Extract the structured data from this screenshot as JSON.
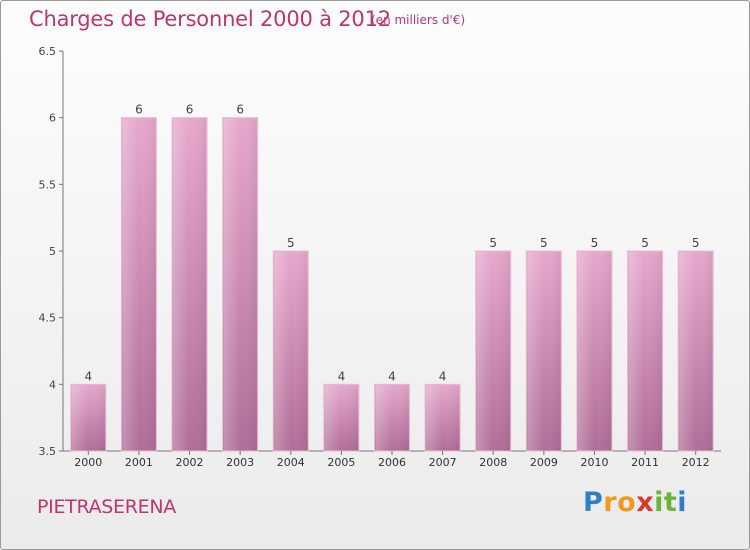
{
  "header": {
    "title": "Charges de Personnel 2000 à 2012",
    "subtitle": "(en milliers d'€)"
  },
  "footer": {
    "commune": "PIETRASERENA",
    "logo_letters": [
      "P",
      "r",
      "o",
      "x",
      "i",
      "t",
      "i"
    ],
    "logo_colors": [
      "#2f7fc4",
      "#f29a1d",
      "#f29a1d",
      "#d93a2b",
      "#6bb33c",
      "#6bb33c",
      "#2f7fc4"
    ]
  },
  "chart_data": {
    "type": "bar",
    "categories": [
      "2000",
      "2001",
      "2002",
      "2003",
      "2004",
      "2005",
      "2006",
      "2007",
      "2008",
      "2009",
      "2010",
      "2011",
      "2012"
    ],
    "values": [
      4,
      6,
      6,
      6,
      5,
      4,
      4,
      4,
      5,
      5,
      5,
      5,
      5
    ],
    "data_labels": [
      "4",
      "6",
      "6",
      "6",
      "5",
      "4",
      "4",
      "4",
      "5",
      "5",
      "5",
      "5",
      "5"
    ],
    "yticks": [
      "3.5",
      "4",
      "4.5",
      "5",
      "5.5",
      "6",
      "6.5"
    ],
    "ylim": [
      3.5,
      6.5
    ],
    "grid": false,
    "bar_color": "#d08ab3",
    "label_color": "#c0356e"
  }
}
